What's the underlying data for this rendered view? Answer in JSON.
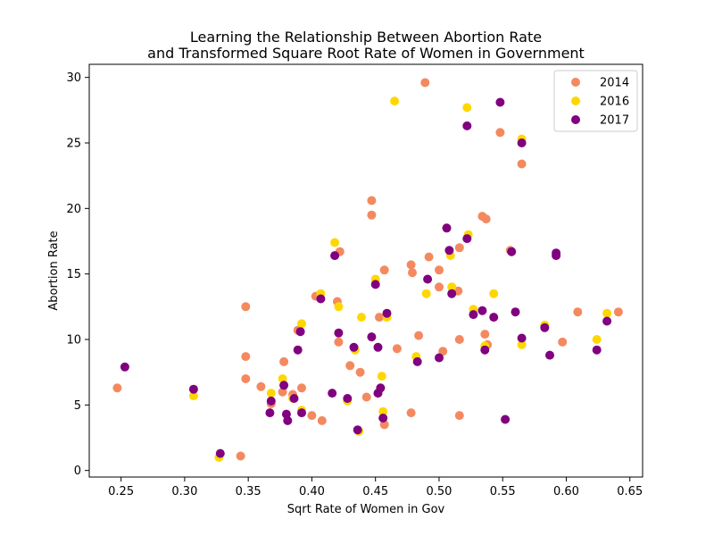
{
  "chart_data": {
    "type": "scatter",
    "title": "Learning the Relationship Between Abortion Rate\nand Transformed Square Root Rate of Women in Government",
    "xlabel": "Sqrt Rate of Women in Gov",
    "ylabel": "Abortion Rate",
    "xlim": [
      0.225,
      0.66
    ],
    "ylim": [
      -0.5,
      31
    ],
    "xticks": [
      0.25,
      0.3,
      0.35,
      0.4,
      0.45,
      0.5,
      0.55,
      0.6,
      0.65
    ],
    "xtick_labels": [
      "0.25",
      "0.30",
      "0.35",
      "0.40",
      "0.45",
      "0.50",
      "0.55",
      "0.60",
      "0.65"
    ],
    "yticks": [
      0,
      5,
      10,
      15,
      20,
      25,
      30
    ],
    "ytick_labels": [
      "0",
      "5",
      "10",
      "15",
      "20",
      "25",
      "30"
    ],
    "grid": false,
    "legend_position": "top-right",
    "series": [
      {
        "name": "2014",
        "color": "#f4895f",
        "points": [
          [
            0.247,
            6.3
          ],
          [
            0.344,
            1.1
          ],
          [
            0.348,
            8.7
          ],
          [
            0.348,
            12.5
          ],
          [
            0.348,
            7.0
          ],
          [
            0.36,
            6.4
          ],
          [
            0.368,
            5.1
          ],
          [
            0.377,
            6.0
          ],
          [
            0.378,
            8.3
          ],
          [
            0.385,
            5.8
          ],
          [
            0.389,
            10.7
          ],
          [
            0.392,
            6.3
          ],
          [
            0.4,
            4.2
          ],
          [
            0.403,
            13.3
          ],
          [
            0.408,
            3.8
          ],
          [
            0.42,
            12.9
          ],
          [
            0.421,
            9.8
          ],
          [
            0.422,
            16.7
          ],
          [
            0.43,
            8.0
          ],
          [
            0.438,
            7.5
          ],
          [
            0.443,
            5.6
          ],
          [
            0.447,
            20.6
          ],
          [
            0.447,
            19.5
          ],
          [
            0.453,
            11.7
          ],
          [
            0.457,
            3.5
          ],
          [
            0.457,
            15.3
          ],
          [
            0.467,
            9.3
          ],
          [
            0.478,
            4.4
          ],
          [
            0.478,
            15.7
          ],
          [
            0.479,
            15.1
          ],
          [
            0.484,
            10.3
          ],
          [
            0.489,
            29.6
          ],
          [
            0.492,
            16.3
          ],
          [
            0.5,
            14.0
          ],
          [
            0.5,
            15.3
          ],
          [
            0.503,
            9.1
          ],
          [
            0.515,
            13.7
          ],
          [
            0.516,
            17.0
          ],
          [
            0.516,
            4.2
          ],
          [
            0.516,
            10.0
          ],
          [
            0.534,
            19.4
          ],
          [
            0.536,
            10.4
          ],
          [
            0.537,
            19.2
          ],
          [
            0.538,
            9.6
          ],
          [
            0.548,
            25.8
          ],
          [
            0.556,
            16.8
          ],
          [
            0.565,
            23.4
          ],
          [
            0.597,
            9.8
          ],
          [
            0.609,
            12.1
          ],
          [
            0.641,
            12.1
          ]
        ]
      },
      {
        "name": "2016",
        "color": "#ffd700",
        "points": [
          [
            0.307,
            5.7
          ],
          [
            0.327,
            1.0
          ],
          [
            0.368,
            5.9
          ],
          [
            0.377,
            7.0
          ],
          [
            0.385,
            5.5
          ],
          [
            0.392,
            11.2
          ],
          [
            0.392,
            4.6
          ],
          [
            0.407,
            13.5
          ],
          [
            0.418,
            17.4
          ],
          [
            0.421,
            12.5
          ],
          [
            0.428,
            5.3
          ],
          [
            0.434,
            9.2
          ],
          [
            0.437,
            3.0
          ],
          [
            0.439,
            11.7
          ],
          [
            0.45,
            14.6
          ],
          [
            0.452,
            5.9
          ],
          [
            0.455,
            7.2
          ],
          [
            0.456,
            4.5
          ],
          [
            0.459,
            11.7
          ],
          [
            0.465,
            28.2
          ],
          [
            0.482,
            8.7
          ],
          [
            0.49,
            13.5
          ],
          [
            0.506,
            18.5
          ],
          [
            0.509,
            16.4
          ],
          [
            0.51,
            14.0
          ],
          [
            0.522,
            27.7
          ],
          [
            0.523,
            18.0
          ],
          [
            0.527,
            12.3
          ],
          [
            0.536,
            9.5
          ],
          [
            0.543,
            13.5
          ],
          [
            0.565,
            25.3
          ],
          [
            0.565,
            9.6
          ],
          [
            0.583,
            11.1
          ],
          [
            0.624,
            10.0
          ],
          [
            0.632,
            12.0
          ]
        ]
      },
      {
        "name": "2017",
        "color": "#800080",
        "points": [
          [
            0.253,
            7.9
          ],
          [
            0.307,
            6.2
          ],
          [
            0.328,
            1.3
          ],
          [
            0.367,
            4.4
          ],
          [
            0.368,
            5.3
          ],
          [
            0.378,
            6.5
          ],
          [
            0.38,
            4.3
          ],
          [
            0.381,
            3.8
          ],
          [
            0.386,
            5.5
          ],
          [
            0.389,
            9.2
          ],
          [
            0.391,
            10.6
          ],
          [
            0.392,
            4.4
          ],
          [
            0.407,
            13.1
          ],
          [
            0.416,
            5.9
          ],
          [
            0.418,
            16.4
          ],
          [
            0.421,
            10.5
          ],
          [
            0.428,
            5.5
          ],
          [
            0.433,
            9.4
          ],
          [
            0.436,
            3.1
          ],
          [
            0.447,
            10.2
          ],
          [
            0.45,
            14.2
          ],
          [
            0.452,
            9.4
          ],
          [
            0.452,
            5.9
          ],
          [
            0.454,
            6.3
          ],
          [
            0.456,
            4.0
          ],
          [
            0.459,
            12.0
          ],
          [
            0.483,
            8.3
          ],
          [
            0.491,
            14.6
          ],
          [
            0.5,
            8.6
          ],
          [
            0.506,
            18.5
          ],
          [
            0.508,
            16.8
          ],
          [
            0.51,
            13.5
          ],
          [
            0.522,
            26.3
          ],
          [
            0.522,
            17.7
          ],
          [
            0.527,
            11.9
          ],
          [
            0.534,
            12.2
          ],
          [
            0.536,
            9.2
          ],
          [
            0.543,
            11.7
          ],
          [
            0.548,
            28.1
          ],
          [
            0.552,
            3.9
          ],
          [
            0.557,
            16.7
          ],
          [
            0.56,
            12.1
          ],
          [
            0.565,
            25.0
          ],
          [
            0.565,
            10.1
          ],
          [
            0.583,
            10.9
          ],
          [
            0.587,
            8.8
          ],
          [
            0.592,
            16.4
          ],
          [
            0.592,
            16.6
          ],
          [
            0.624,
            9.2
          ],
          [
            0.632,
            11.4
          ]
        ]
      }
    ]
  }
}
